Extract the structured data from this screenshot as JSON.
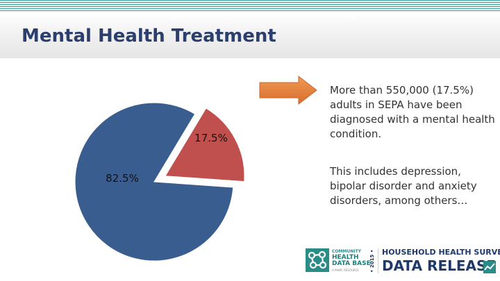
{
  "slide": {
    "title": "Mental Health Treatment"
  },
  "chart_data": {
    "type": "pie",
    "title": "Mental Health Treatment",
    "slices": [
      {
        "label": "82.5%",
        "value": 82.5,
        "color": "#3a5d8f",
        "exploded": false
      },
      {
        "label": "17.5%",
        "value": 17.5,
        "color": "#c0504d",
        "exploded": true
      }
    ],
    "legend": "none"
  },
  "arrow": {
    "color": "#e07b39",
    "icon": "right-arrow-icon"
  },
  "callouts": [
    {
      "text": "More than 550,000 (17.5%) adults in SEPA have been diagnosed with a mental health condition."
    },
    {
      "text": "This includes depression, bipolar disorder and anxiety disorders, among others…"
    }
  ],
  "footer": {
    "org_small": "COMMUNITY",
    "org_big_1": "HEALTH",
    "org_big_2": "DATA BASE",
    "org_tiny": "A PHMC RESOURCE",
    "year": "• 2015 •",
    "survey": "HOUSEHOLD HEALTH SURVEY",
    "release": "DATA RELEASE",
    "brand_color": "#2a8c86",
    "navy_color": "#1f3a6a"
  }
}
